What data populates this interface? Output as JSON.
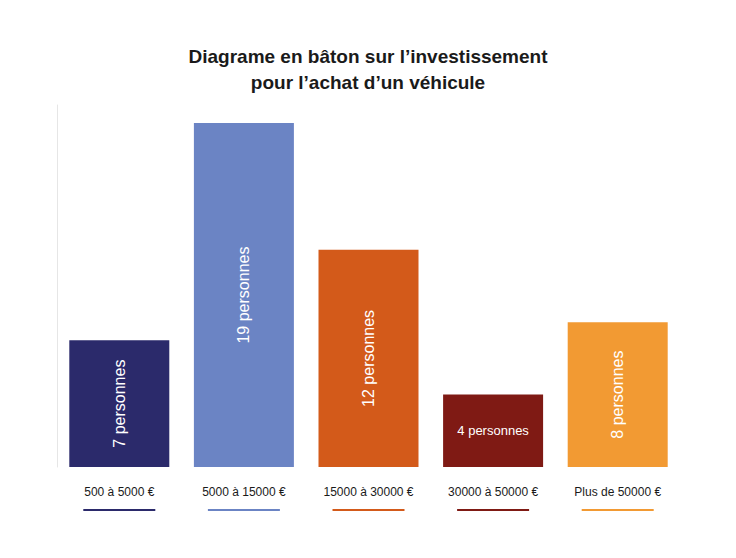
{
  "chart_data": {
    "type": "bar",
    "title": "Diagrame en bâton sur l’investissement\npour l’achat d’un véhicule",
    "categories": [
      "500 à 5000 €",
      "5000 à 15000 €",
      "15000 à 30000 €",
      "30000 à 50000 €",
      "Plus de 50000 €"
    ],
    "values": [
      7,
      19,
      12,
      4,
      8
    ],
    "value_labels": [
      "7 personnes",
      "19 personnes",
      "12 personnes",
      "4 personnes",
      "8 personnes"
    ],
    "colors": [
      "#2b2a6b",
      "#6b84c4",
      "#d35a1a",
      "#7f1a14",
      "#f29a33"
    ],
    "ylim": [
      0,
      20
    ],
    "data_labels": true,
    "tick_labels": "x",
    "grid": false
  }
}
